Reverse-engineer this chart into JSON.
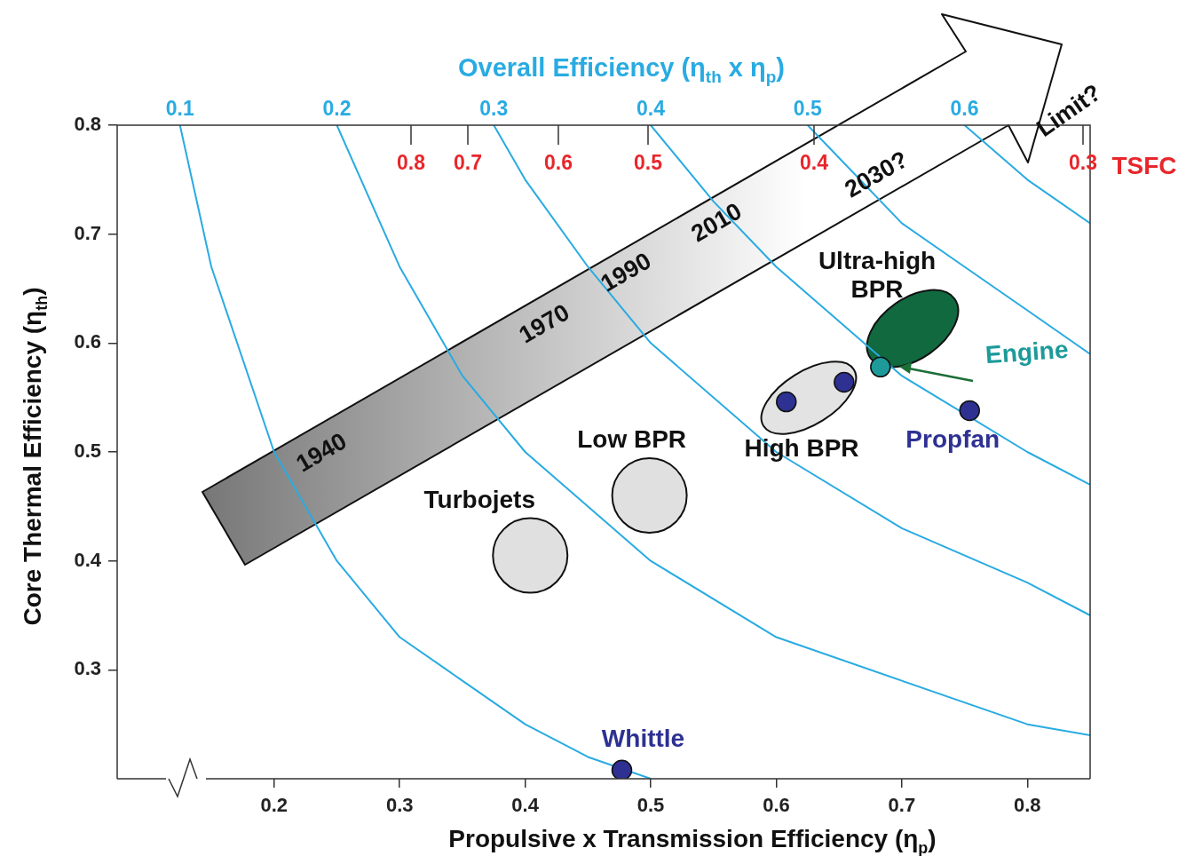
{
  "chart_data": {
    "type": "line",
    "title": "Overall Efficiency (η$_{th}$ x η$_{p}$)",
    "xlabel": "Propulsive x Transmission Efficiency (η$_{p}$)",
    "ylabel": "Core Thermal Efficiency (η$_{th}$)",
    "xlim": [
      0.075,
      0.85
    ],
    "xticks": [
      0.2,
      0.3,
      0.4,
      0.5,
      0.6,
      0.7,
      0.8
    ],
    "ylim": [
      0.2,
      0.8
    ],
    "yticks": [
      0.3,
      0.4,
      0.5,
      0.6,
      0.7,
      0.8
    ],
    "grid": false,
    "legend": false,
    "marker": "circle",
    "series": [
      {
        "name": "0.1",
        "color": "#29abe2",
        "marker": "none",
        "x": [
          0.125,
          0.15,
          0.2,
          0.25,
          0.3,
          0.35,
          0.4,
          0.45,
          0.5
        ],
        "values": [
          0.8,
          0.67,
          0.5,
          0.4,
          0.33,
          0.29,
          0.25,
          0.22,
          0.2
        ]
      },
      {
        "name": "0.2",
        "color": "#29abe2",
        "marker": "none",
        "x": [
          0.25,
          0.3,
          0.35,
          0.4,
          0.5,
          0.6,
          0.7,
          0.8,
          0.85
        ],
        "values": [
          0.8,
          0.67,
          0.57,
          0.5,
          0.4,
          0.33,
          0.29,
          0.25,
          0.24
        ]
      },
      {
        "name": "0.3",
        "color": "#29abe2",
        "marker": "none",
        "x": [
          0.375,
          0.4,
          0.45,
          0.5,
          0.6,
          0.7,
          0.8,
          0.85
        ],
        "values": [
          0.8,
          0.75,
          0.67,
          0.6,
          0.5,
          0.43,
          0.38,
          0.35
        ]
      },
      {
        "name": "0.4",
        "color": "#29abe2",
        "marker": "none",
        "x": [
          0.5,
          0.55,
          0.6,
          0.7,
          0.8,
          0.85
        ],
        "values": [
          0.8,
          0.73,
          0.67,
          0.57,
          0.5,
          0.47
        ]
      },
      {
        "name": "0.5",
        "color": "#29abe2",
        "marker": "none",
        "x": [
          0.625,
          0.65,
          0.7,
          0.75,
          0.8,
          0.85
        ],
        "values": [
          0.8,
          0.77,
          0.71,
          0.67,
          0.63,
          0.59
        ]
      },
      {
        "name": "0.6",
        "color": "#29abe2",
        "marker": "none",
        "x": [
          0.75,
          0.8,
          0.85
        ],
        "values": [
          0.8,
          0.75,
          0.71
        ]
      },
      {
        "type": "bubble",
        "name": "Turbojets",
        "color": "#e0e0e0",
        "x": [
          0.404
        ],
        "values": [
          0.405
        ],
        "sizes": [
          1
        ]
      },
      {
        "type": "bubble",
        "name": "Low BPR",
        "color": "#e0e0e0",
        "x": [
          0.499
        ],
        "values": [
          0.46
        ],
        "sizes": [
          1
        ]
      },
      {
        "type": "scatter",
        "name": "Whittle",
        "color": "#2e3192",
        "x": [
          0.477
        ],
        "values": [
          0.208
        ]
      },
      {
        "type": "scatter",
        "color": "#2e3192",
        "x": [
          0.608,
          0.654
        ],
        "values": [
          0.546,
          0.564
        ]
      },
      {
        "type": "scatter",
        "name": "Propfan",
        "color": "#2e3192",
        "x": [
          0.754
        ],
        "values": [
          0.538
        ]
      },
      {
        "type": "scatter",
        "name": "Engine",
        "color": "#1d9a9a",
        "x": [
          0.683
        ],
        "values": [
          0.578
        ]
      }
    ],
    "annotations": [
      "1940",
      "1970",
      "1990",
      "2010",
      "2030?",
      "Limit?",
      "High BPR",
      "Ultra-high BPR",
      "0.8",
      "0.7",
      "0.6",
      "0.5",
      "0.4",
      "0.3",
      "TSFC"
    ]
  }
}
